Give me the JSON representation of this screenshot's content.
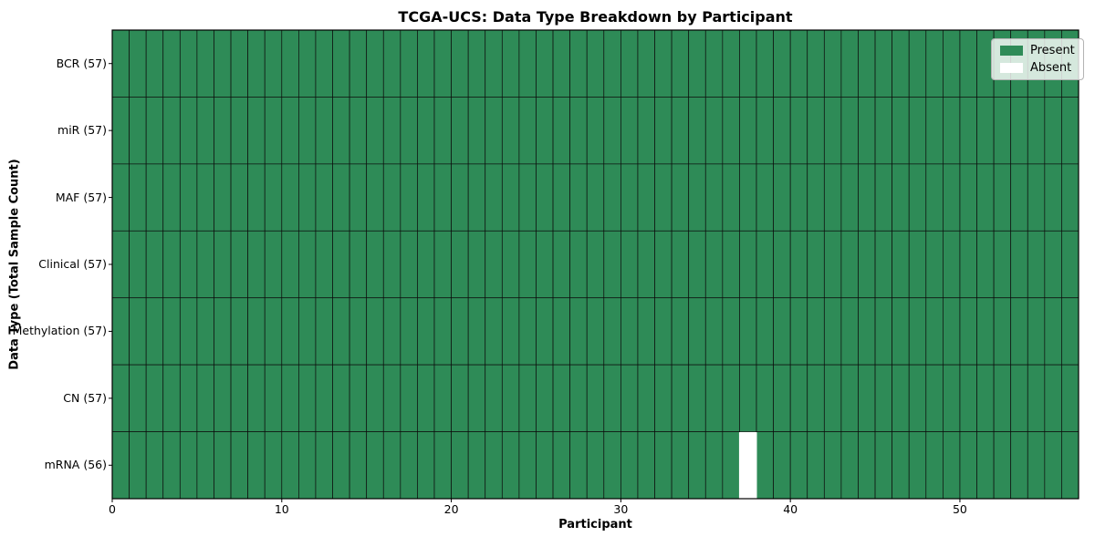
{
  "legend": {
    "items": [
      {
        "label": "Present",
        "color": "#2e8b57"
      },
      {
        "label": "Absent",
        "color": "#ffffff"
      }
    ],
    "position": "upper right"
  },
  "chart_data": {
    "type": "heatmap",
    "title": "TCGA-UCS: Data Type Breakdown by Participant",
    "xlabel": "Participant",
    "ylabel": "Data Type (Total Sample Count)",
    "x_ticks": [
      0,
      10,
      20,
      30,
      40,
      50
    ],
    "x_range": [
      0,
      57
    ],
    "n_participants": 57,
    "y_categories_top_to_bottom": [
      "BCR (57)",
      "miR (57)",
      "MAF (57)",
      "Clinical (57)",
      "Methylation (57)",
      "CN (57)",
      "mRNA (56)"
    ],
    "rows": [
      {
        "label": "BCR (57)",
        "data_type": "BCR",
        "present_count": 57,
        "absent_participants": []
      },
      {
        "label": "miR (57)",
        "data_type": "miR",
        "present_count": 57,
        "absent_participants": []
      },
      {
        "label": "MAF (57)",
        "data_type": "MAF",
        "present_count": 57,
        "absent_participants": []
      },
      {
        "label": "Clinical (57)",
        "data_type": "Clinical",
        "present_count": 57,
        "absent_participants": []
      },
      {
        "label": "Methylation (57)",
        "data_type": "Methylation",
        "present_count": 57,
        "absent_participants": []
      },
      {
        "label": "CN (57)",
        "data_type": "CN",
        "present_count": 57,
        "absent_participants": []
      },
      {
        "label": "mRNA (56)",
        "data_type": "mRNA",
        "present_count": 56,
        "absent_participants": [
          37
        ]
      }
    ],
    "values_encoding": {
      "present": 1,
      "absent": 0
    },
    "colors": {
      "present": "#2e8b57",
      "absent": "#ffffff",
      "cell_edge": "#0d0d0d",
      "plot_border": "#000000"
    },
    "legend_labels": [
      "Present",
      "Absent"
    ],
    "legend_position": "upper right",
    "grid": false
  }
}
